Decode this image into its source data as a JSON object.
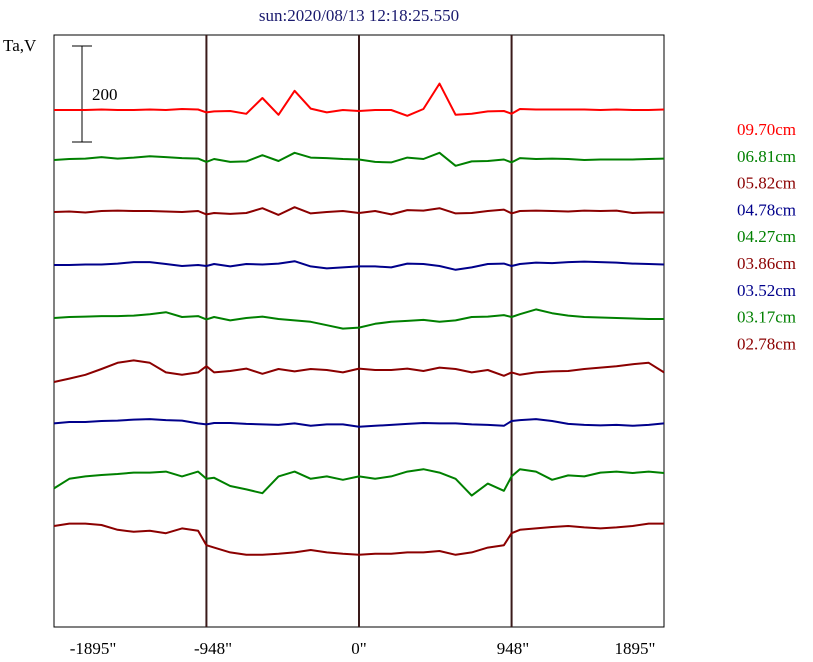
{
  "chart_data": {
    "type": "line",
    "title": "sun:2020/08/13 12:18:25.550",
    "ylabel": "Ta,V",
    "xlabel": "",
    "scale_bar_label": "200",
    "x_ticks": [
      "-1895\"",
      "-948\"",
      "0\"",
      "948\"",
      "1895\""
    ],
    "x_tick_values": [
      -1895,
      -948,
      0,
      948,
      1895
    ],
    "vertical_lines_at": [
      -948,
      0,
      948
    ],
    "xlim": [
      -1895,
      1895
    ],
    "x": [
      -1895,
      -1800,
      -1700,
      -1600,
      -1500,
      -1400,
      -1300,
      -1200,
      -1100,
      -1000,
      -948,
      -900,
      -800,
      -700,
      -600,
      -500,
      -400,
      -300,
      -200,
      -100,
      0,
      100,
      200,
      300,
      400,
      500,
      600,
      700,
      800,
      900,
      948,
      1000,
      1100,
      1200,
      1300,
      1400,
      1500,
      1600,
      1700,
      1800,
      1895
    ],
    "series": [
      {
        "name": "09.70cm",
        "color": "#ff0000",
        "offset": 0,
        "values": [
          0,
          0,
          0,
          1,
          0,
          0,
          1,
          0,
          2,
          1,
          -5,
          -3,
          -2,
          -8,
          25,
          -10,
          40,
          3,
          -5,
          0,
          -2,
          0,
          0,
          -12,
          2,
          55,
          -10,
          -8,
          -3,
          -2,
          -8,
          2,
          1,
          1,
          1,
          1,
          0,
          1,
          0,
          0,
          1
        ]
      },
      {
        "name": "06.81cm",
        "color": "#008000",
        "offset": 50,
        "values": [
          0,
          2,
          3,
          6,
          3,
          5,
          8,
          6,
          4,
          3,
          -4,
          2,
          -4,
          -3,
          10,
          -2,
          15,
          5,
          4,
          2,
          1,
          -4,
          -5,
          5,
          2,
          15,
          -12,
          -3,
          -2,
          1,
          -5,
          4,
          2,
          3,
          2,
          0,
          1,
          1,
          1,
          2,
          3
        ]
      },
      {
        "name": "05.82cm",
        "color": "#8b0000",
        "offset": 102,
        "values": [
          0,
          1,
          -1,
          2,
          3,
          2,
          2,
          1,
          0,
          2,
          -5,
          -2,
          -4,
          -2,
          8,
          -6,
          10,
          -3,
          0,
          2,
          -2,
          2,
          -5,
          4,
          3,
          8,
          -3,
          -2,
          2,
          5,
          -3,
          2,
          3,
          2,
          1,
          3,
          2,
          3,
          -2,
          -1,
          -1
        ]
      },
      {
        "name": "04.78cm",
        "color": "#00008b",
        "offset": 155,
        "values": [
          0,
          0,
          1,
          1,
          3,
          6,
          6,
          2,
          -2,
          0,
          -2,
          2,
          -3,
          2,
          1,
          3,
          8,
          -3,
          -7,
          -5,
          -3,
          -3,
          -5,
          3,
          2,
          -2,
          -10,
          -5,
          2,
          3,
          -2,
          2,
          5,
          4,
          6,
          7,
          6,
          5,
          3,
          2,
          1
        ]
      },
      {
        "name": "04.27cm",
        "color": "#008000",
        "offset": 208,
        "values": [
          0,
          2,
          3,
          4,
          4,
          5,
          8,
          12,
          2,
          4,
          -3,
          2,
          -5,
          0,
          3,
          -2,
          -5,
          -8,
          -15,
          -22,
          -20,
          -12,
          -8,
          -6,
          -4,
          -8,
          -5,
          2,
          3,
          6,
          2,
          8,
          18,
          10,
          5,
          2,
          1,
          0,
          -1,
          -2,
          -2
        ]
      },
      {
        "name": "03.86cm",
        "color": "#8b0000",
        "offset": 260,
        "values": [
          -25,
          -18,
          -10,
          2,
          15,
          20,
          15,
          -5,
          -10,
          -5,
          8,
          -5,
          -2,
          3,
          -8,
          2,
          -3,
          2,
          0,
          -5,
          3,
          0,
          0,
          3,
          -2,
          5,
          2,
          -5,
          0,
          -12,
          -5,
          -10,
          -5,
          -3,
          -2,
          2,
          5,
          8,
          12,
          15,
          -5
        ]
      },
      {
        "name": "03.52cm",
        "color": "#00008b",
        "offset": 312,
        "values": [
          -3,
          0,
          0,
          2,
          3,
          5,
          6,
          4,
          3,
          -3,
          -5,
          -2,
          -2,
          -4,
          -5,
          -6,
          -3,
          -8,
          -5,
          -5,
          -10,
          -8,
          -6,
          -4,
          -2,
          -3,
          -3,
          -5,
          -6,
          -8,
          2,
          4,
          6,
          2,
          -4,
          -6,
          -7,
          -6,
          -8,
          -6,
          -3
        ]
      },
      {
        "name": "03.17cm",
        "color": "#008000",
        "offset": 364,
        "values": [
          -30,
          -10,
          -5,
          -2,
          0,
          3,
          3,
          5,
          -5,
          5,
          -10,
          -8,
          -25,
          -32,
          -40,
          -5,
          5,
          -10,
          -5,
          -12,
          -5,
          -10,
          -5,
          5,
          10,
          3,
          -10,
          -45,
          -20,
          -35,
          -5,
          10,
          5,
          -12,
          -3,
          -5,
          3,
          5,
          2,
          5,
          2
        ]
      },
      {
        "name": "02.78cm",
        "color": "#8b0000",
        "offset": 416,
        "values": [
          0,
          5,
          5,
          2,
          -8,
          -12,
          -10,
          -15,
          -5,
          -10,
          -40,
          -45,
          -55,
          -60,
          -60,
          -58,
          -55,
          -50,
          -55,
          -58,
          -60,
          -58,
          -58,
          -55,
          -55,
          -52,
          -60,
          -55,
          -45,
          -40,
          -15,
          -8,
          -5,
          -2,
          0,
          -3,
          -5,
          -3,
          0,
          5,
          5
        ]
      }
    ]
  }
}
